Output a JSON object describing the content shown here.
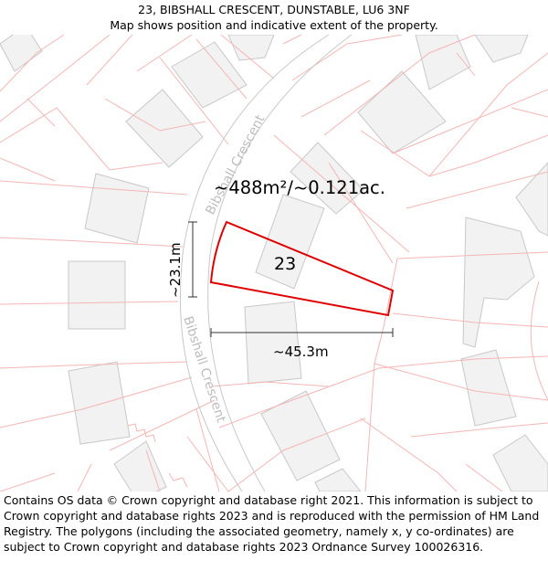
{
  "header": {
    "address": "23, BIBSHALL CRESCENT, DUNSTABLE, LU6 3NF",
    "subtitle": "Map shows position and indicative extent of the property."
  },
  "map": {
    "road_name_upper": "Bibshall Crescent",
    "road_name_lower": "Bibshall Crescent",
    "area_label": "~488m²/~0.121ac.",
    "plot_number": "23",
    "height_dimension": "~23.1m",
    "width_dimension": "~45.3m",
    "colors": {
      "boundary": "#e00000",
      "parcel_lines": "#f5b5b5",
      "buildings_fill": "#f2f2f2",
      "buildings_stroke": "#c8c8c8",
      "road_edge": "#c8c8c8"
    }
  },
  "footer": {
    "attribution": "Contains OS data © Crown copyright and database right 2021. This information is subject to Crown copyright and database rights 2023 and is reproduced with the permission of HM Land Registry. The polygons (including the associated geometry, namely x, y co-ordinates) are subject to Crown copyright and database rights 2023 Ordnance Survey 100026316."
  }
}
